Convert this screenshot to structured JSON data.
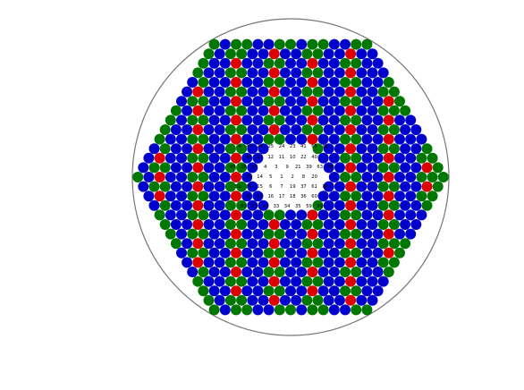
{
  "diagram": {
    "colors": {
      "blue": "#0000cc",
      "green": "#007700",
      "red": "#dd0000",
      "outline": "#777777",
      "label_on_colored": "#c8c8c8",
      "label_center": "#000000"
    },
    "center_rows": [
      [
        "74",
        "47",
        "26",
        "25",
        "24",
        "23",
        "41",
        "65",
        "88"
      ],
      [
        "48",
        "27",
        "12",
        "11",
        "10",
        "22",
        "40"
      ],
      [
        "49",
        "28",
        "13",
        "4",
        "3",
        "9",
        "21",
        "39",
        "63",
        "86"
      ],
      [
        "29",
        "14",
        "5",
        "1",
        "2",
        "8",
        "20"
      ],
      [
        "51",
        "30",
        "15",
        "6",
        "7",
        "19",
        "37",
        "61",
        "84"
      ],
      [
        "52",
        "31",
        "16",
        "17",
        "18",
        "36",
        "60"
      ],
      [
        "80",
        "53",
        "32",
        "33",
        "34",
        "35",
        "59",
        "89"
      ]
    ]
  }
}
